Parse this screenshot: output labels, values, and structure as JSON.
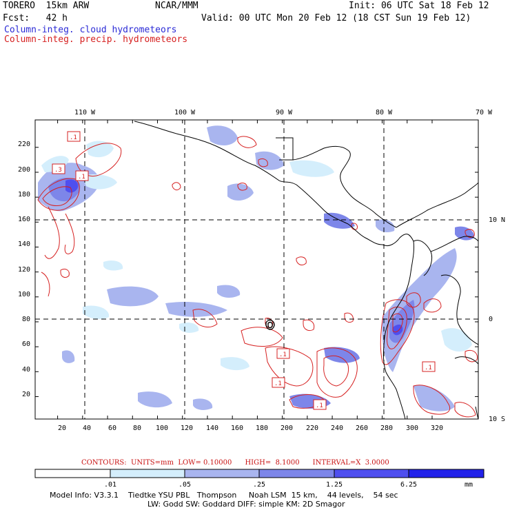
{
  "header": {
    "model": "TORERO  15km ARW",
    "center": "NCAR/MMM",
    "init": "Init: 06 UTC Sat 18 Feb 12",
    "fcst": "Fcst:   42 h",
    "valid": "Valid: 00 UTC Mon 20 Feb 12 (18 CST Sun 19 Feb 12)",
    "line_cloud": "Column-integ. cloud hydrometeors",
    "line_precip": "Column-integ. precip. hydrometeors"
  },
  "axes": {
    "x_ticks": [
      "20",
      "40",
      "60",
      "80",
      "100",
      "120",
      "140",
      "160",
      "180",
      "200",
      "220",
      "240",
      "260",
      "280",
      "300",
      "320"
    ],
    "y_ticks": [
      "20",
      "40",
      "60",
      "80",
      "100",
      "120",
      "140",
      "160",
      "180",
      "200",
      "220"
    ],
    "lon_labels": [
      "110 W",
      "100 W",
      "90 W",
      "80 W",
      "70 W"
    ],
    "lat_labels": [
      "10 N",
      "0",
      "10 S"
    ]
  },
  "contour_labels": [
    ".1",
    ".3",
    ".1",
    ".1",
    ".1",
    ".1",
    ".1"
  ],
  "contour_info": "CONTOURS:  UNITS=mm  LOW= 0.10000      HIGH=  8.1000      INTERVAL=X  3.0000",
  "colorbar": {
    "labels": [
      ".01",
      ".05",
      ".25",
      "1.25",
      "6.25"
    ],
    "unit": "mm",
    "colors": [
      "#ffffff",
      "#d4eefc",
      "#a9b5ef",
      "#7d86e9",
      "#4f4fef",
      "#2222ea"
    ]
  },
  "model_info": {
    "line1": "Model Info: V3.3.1    Tiedtke YSU PBL   Thompson     Noah LSM  15 km,    44 levels,    54 sec",
    "line2": "LW: Godd SW: Goddard DIFF: simple KM: 2D Smagor"
  },
  "colors": {
    "cloud_text": "#2a2ad6",
    "precip_text": "#d62020",
    "contour": "#d62020"
  }
}
